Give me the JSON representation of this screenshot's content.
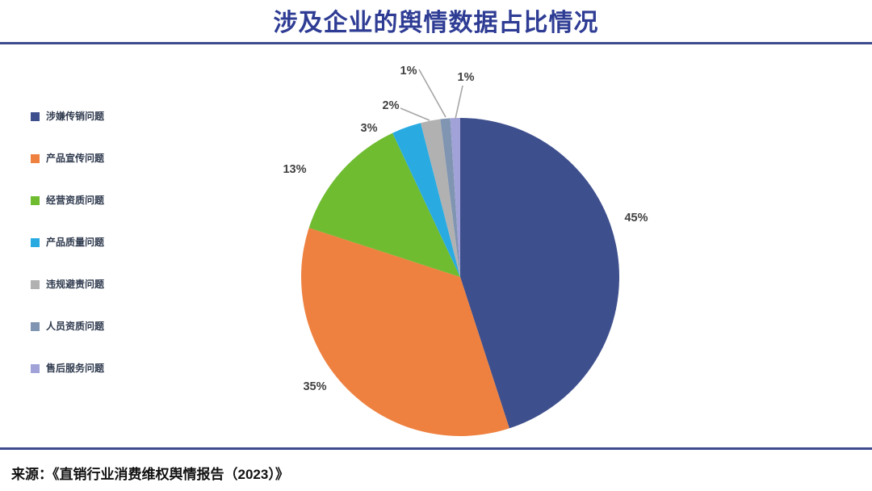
{
  "title": "涉及企业的舆情数据占比情况",
  "title_color": "#2e3c94",
  "accent_line_color": "#3e4c8e",
  "source": "来源：《直销行业消费维权舆情报告（2023）》",
  "chart_data": {
    "type": "pie",
    "title": "涉及企业的舆情数据占比情况",
    "categories": [
      "涉嫌传销问题",
      "产品宣传问题",
      "经营资质问题",
      "产品质量问题",
      "违规避责问题",
      "人员资质问题",
      "售后服务问题"
    ],
    "values": [
      45,
      35,
      13,
      3,
      2,
      1,
      1
    ],
    "unit": "percent",
    "labels": [
      "45%",
      "35%",
      "13%",
      "3%",
      "2%",
      "1%",
      "1%"
    ],
    "colors": [
      "#3e4f8d",
      "#ee8140",
      "#6fbc30",
      "#29abe2",
      "#b1b1b1",
      "#8095b1",
      "#a1a2d8"
    ],
    "label_color": "#404040",
    "leader_line_color": "#a6a6a6",
    "legend_position": "left",
    "start_angle_deg": 0,
    "direction": "clockwise"
  }
}
